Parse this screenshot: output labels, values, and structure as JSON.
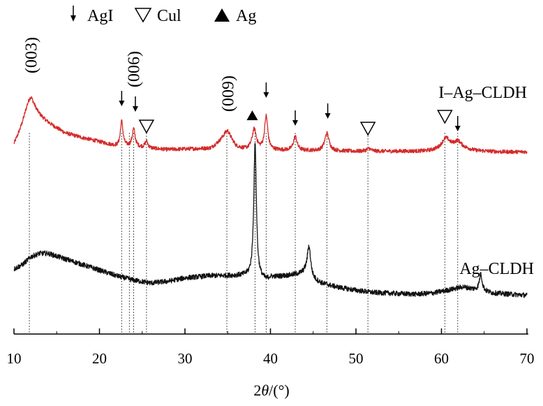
{
  "chart_data": {
    "type": "line",
    "title": "",
    "xlabel": "2θ/(°)",
    "ylabel": "",
    "xlim": [
      10,
      70
    ],
    "xticks": [
      10,
      20,
      30,
      40,
      50,
      60,
      70
    ],
    "y_units": "arbitrary intensity",
    "legend": [
      {
        "symbol": "↓",
        "label": "AgI"
      },
      {
        "symbol": "▽",
        "label": "Cul"
      },
      {
        "symbol": "▲",
        "label": "Ag"
      }
    ],
    "series": [
      {
        "name": "I–Ag–CLDH",
        "color": "#d42a2a",
        "baseline_points": [
          [
            10,
            0.12
          ],
          [
            12,
            0.7
          ],
          [
            14,
            0.52
          ],
          [
            16,
            0.35
          ],
          [
            18,
            0.27
          ],
          [
            20,
            0.2
          ],
          [
            22,
            0.12
          ],
          [
            24,
            0.11
          ],
          [
            26,
            0.08
          ],
          [
            28,
            0.06
          ],
          [
            30,
            0.07
          ],
          [
            33,
            0.08
          ],
          [
            35,
            0.28
          ],
          [
            36,
            0.1
          ],
          [
            37,
            0.06
          ],
          [
            40,
            0.05
          ],
          [
            45,
            0.04
          ],
          [
            50,
            0.03
          ],
          [
            55,
            0.03
          ],
          [
            58,
            0.03
          ],
          [
            60,
            0.05
          ],
          [
            62,
            0.1
          ],
          [
            64,
            0.04
          ],
          [
            67,
            0.02
          ],
          [
            70,
            0.02
          ]
        ],
        "peaks": [
          {
            "x": 11.8,
            "h": 0.32,
            "w": 0.8
          },
          {
            "x": 22.6,
            "h": 0.45,
            "w": 0.18
          },
          {
            "x": 24.0,
            "h": 0.32,
            "w": 0.2
          },
          {
            "x": 25.5,
            "h": 0.12,
            "w": 0.2
          },
          {
            "x": 34.9,
            "h": 0.12,
            "w": 0.6
          },
          {
            "x": 38.1,
            "h": 0.36,
            "w": 0.3
          },
          {
            "x": 39.5,
            "h": 0.6,
            "w": 0.22
          },
          {
            "x": 42.9,
            "h": 0.25,
            "w": 0.25
          },
          {
            "x": 46.6,
            "h": 0.32,
            "w": 0.3
          },
          {
            "x": 51.5,
            "h": 0.05,
            "w": 0.3
          },
          {
            "x": 60.5,
            "h": 0.2,
            "w": 0.6
          },
          {
            "x": 61.9,
            "h": 0.1,
            "w": 0.5
          }
        ],
        "noise": 0.035
      },
      {
        "name": "Ag–CLDH",
        "color": "#111111",
        "baseline_points": [
          [
            10,
            0.5
          ],
          [
            11,
            0.58
          ],
          [
            12,
            0.72
          ],
          [
            13,
            0.78
          ],
          [
            14,
            0.78
          ],
          [
            16,
            0.68
          ],
          [
            18,
            0.58
          ],
          [
            20,
            0.48
          ],
          [
            22,
            0.38
          ],
          [
            24,
            0.3
          ],
          [
            26,
            0.25
          ],
          [
            28,
            0.28
          ],
          [
            30,
            0.34
          ],
          [
            33,
            0.38
          ],
          [
            35,
            0.38
          ],
          [
            37,
            0.38
          ],
          [
            38,
            0.36
          ],
          [
            39.5,
            0.3
          ],
          [
            40,
            0.35
          ],
          [
            42,
            0.38
          ],
          [
            44,
            0.42
          ],
          [
            45,
            0.3
          ],
          [
            46,
            0.24
          ],
          [
            48,
            0.17
          ],
          [
            50,
            0.12
          ],
          [
            52,
            0.08
          ],
          [
            55,
            0.06
          ],
          [
            57,
            0.05
          ],
          [
            59,
            0.07
          ],
          [
            61,
            0.13
          ],
          [
            62.5,
            0.18
          ],
          [
            64,
            0.13
          ],
          [
            66,
            0.07
          ],
          [
            68,
            0.05
          ],
          [
            70,
            0.03
          ]
        ],
        "peaks": [
          {
            "x": 38.2,
            "h": 2.4,
            "w": 0.18
          },
          {
            "x": 44.5,
            "h": 0.55,
            "w": 0.25
          },
          {
            "x": 64.6,
            "h": 0.3,
            "w": 0.2
          }
        ],
        "noise": 0.045
      }
    ],
    "annotations": {
      "miller_labels": [
        {
          "x": 12.0,
          "text": "(003)"
        },
        {
          "x": 24.0,
          "text": "(006)"
        },
        {
          "x": 35.0,
          "text": "(009)"
        }
      ],
      "agi_arrows_x": [
        22.6,
        24.2,
        39.5,
        42.9,
        46.7,
        61.9
      ],
      "cui_triangles_x": [
        25.5,
        51.4,
        60.4
      ],
      "ag_triangles_x": [
        38.2
      ],
      "reference_lines_x": [
        11.8,
        22.6,
        23.5,
        24.0,
        25.5,
        34.9,
        38.2,
        39.5,
        42.9,
        46.6,
        51.4,
        60.4,
        61.9
      ]
    }
  }
}
